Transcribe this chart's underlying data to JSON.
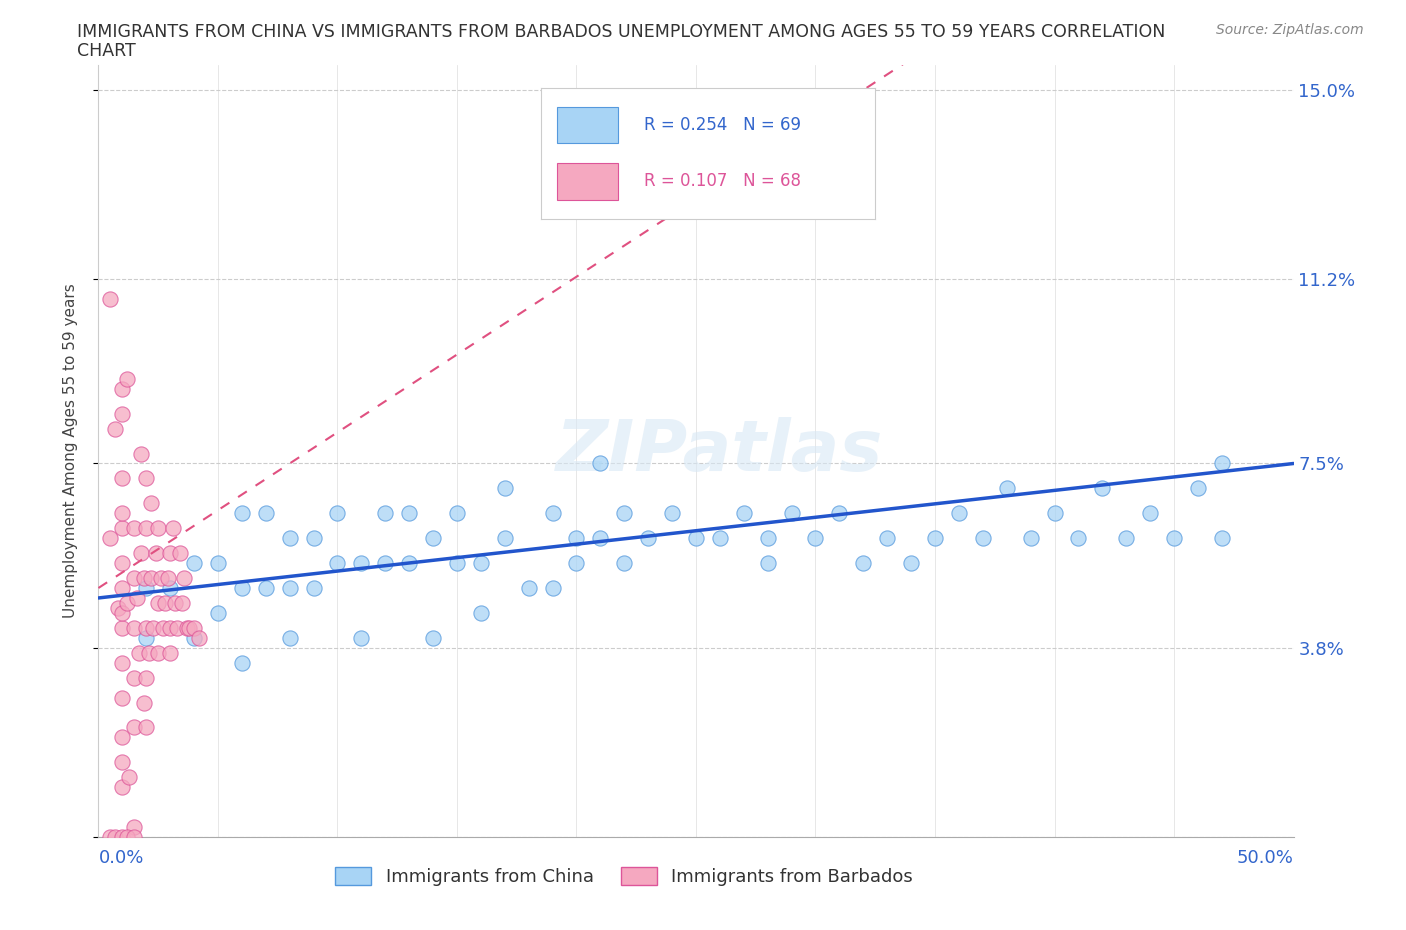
{
  "title_line1": "IMMIGRANTS FROM CHINA VS IMMIGRANTS FROM BARBADOS UNEMPLOYMENT AMONG AGES 55 TO 59 YEARS CORRELATION",
  "title_line2": "CHART",
  "source_text": "Source: ZipAtlas.com",
  "ylabel": "Unemployment Among Ages 55 to 59 years",
  "xlim": [
    0.0,
    0.5
  ],
  "ylim": [
    0.0,
    0.155
  ],
  "ytick_vals": [
    0.0,
    0.038,
    0.075,
    0.112,
    0.15
  ],
  "ytick_labels": [
    "",
    "3.8%",
    "7.5%",
    "11.2%",
    "15.0%"
  ],
  "legend_r1_text": "R = 0.254   N = 69",
  "legend_r2_text": "R = 0.107   N = 68",
  "color_china": "#A8D4F5",
  "color_barbados": "#F5A8C0",
  "trendline_china_color": "#2255CC",
  "trendline_barbados_color": "#E05080",
  "watermark": "ZIPatlas",
  "china_x": [
    0.02,
    0.02,
    0.03,
    0.04,
    0.04,
    0.05,
    0.05,
    0.06,
    0.06,
    0.07,
    0.07,
    0.08,
    0.08,
    0.09,
    0.09,
    0.1,
    0.1,
    0.11,
    0.12,
    0.12,
    0.13,
    0.13,
    0.14,
    0.15,
    0.15,
    0.16,
    0.17,
    0.17,
    0.18,
    0.19,
    0.2,
    0.2,
    0.21,
    0.22,
    0.22,
    0.23,
    0.24,
    0.25,
    0.26,
    0.27,
    0.28,
    0.28,
    0.29,
    0.3,
    0.31,
    0.32,
    0.33,
    0.34,
    0.35,
    0.36,
    0.37,
    0.38,
    0.39,
    0.4,
    0.41,
    0.42,
    0.43,
    0.44,
    0.45,
    0.46,
    0.47,
    0.47,
    0.21,
    0.19,
    0.16,
    0.14,
    0.11,
    0.08,
    0.06
  ],
  "china_y": [
    0.05,
    0.04,
    0.05,
    0.055,
    0.04,
    0.055,
    0.045,
    0.065,
    0.05,
    0.065,
    0.05,
    0.06,
    0.05,
    0.06,
    0.05,
    0.065,
    0.055,
    0.055,
    0.065,
    0.055,
    0.065,
    0.055,
    0.06,
    0.065,
    0.055,
    0.055,
    0.07,
    0.06,
    0.05,
    0.065,
    0.06,
    0.055,
    0.06,
    0.065,
    0.055,
    0.06,
    0.065,
    0.06,
    0.06,
    0.065,
    0.06,
    0.055,
    0.065,
    0.06,
    0.065,
    0.055,
    0.06,
    0.055,
    0.06,
    0.065,
    0.06,
    0.07,
    0.06,
    0.065,
    0.06,
    0.07,
    0.06,
    0.065,
    0.06,
    0.07,
    0.075,
    0.06,
    0.075,
    0.05,
    0.045,
    0.04,
    0.04,
    0.04,
    0.035
  ],
  "barbados_x": [
    0.005,
    0.005,
    0.007,
    0.008,
    0.01,
    0.01,
    0.01,
    0.01,
    0.01,
    0.01,
    0.01,
    0.01,
    0.01,
    0.01,
    0.01,
    0.01,
    0.01,
    0.01,
    0.012,
    0.012,
    0.013,
    0.015,
    0.015,
    0.015,
    0.015,
    0.015,
    0.015,
    0.016,
    0.017,
    0.018,
    0.018,
    0.019,
    0.019,
    0.02,
    0.02,
    0.02,
    0.02,
    0.02,
    0.021,
    0.022,
    0.022,
    0.023,
    0.024,
    0.025,
    0.025,
    0.025,
    0.026,
    0.027,
    0.028,
    0.029,
    0.03,
    0.03,
    0.03,
    0.031,
    0.032,
    0.033,
    0.034,
    0.035,
    0.036,
    0.037,
    0.038,
    0.04,
    0.042,
    0.005,
    0.007,
    0.01,
    0.012,
    0.015
  ],
  "barbados_y": [
    0.108,
    0.06,
    0.082,
    0.046,
    0.05,
    0.042,
    0.062,
    0.035,
    0.065,
    0.028,
    0.02,
    0.072,
    0.015,
    0.085,
    0.055,
    0.045,
    0.09,
    0.01,
    0.047,
    0.092,
    0.012,
    0.042,
    0.032,
    0.052,
    0.062,
    0.022,
    0.002,
    0.048,
    0.037,
    0.057,
    0.077,
    0.052,
    0.027,
    0.042,
    0.062,
    0.032,
    0.072,
    0.022,
    0.037,
    0.052,
    0.067,
    0.042,
    0.057,
    0.047,
    0.037,
    0.062,
    0.052,
    0.042,
    0.047,
    0.052,
    0.042,
    0.057,
    0.037,
    0.062,
    0.047,
    0.042,
    0.057,
    0.047,
    0.052,
    0.042,
    0.042,
    0.042,
    0.04,
    0.0,
    0.0,
    0.0,
    0.0,
    0.0
  ]
}
